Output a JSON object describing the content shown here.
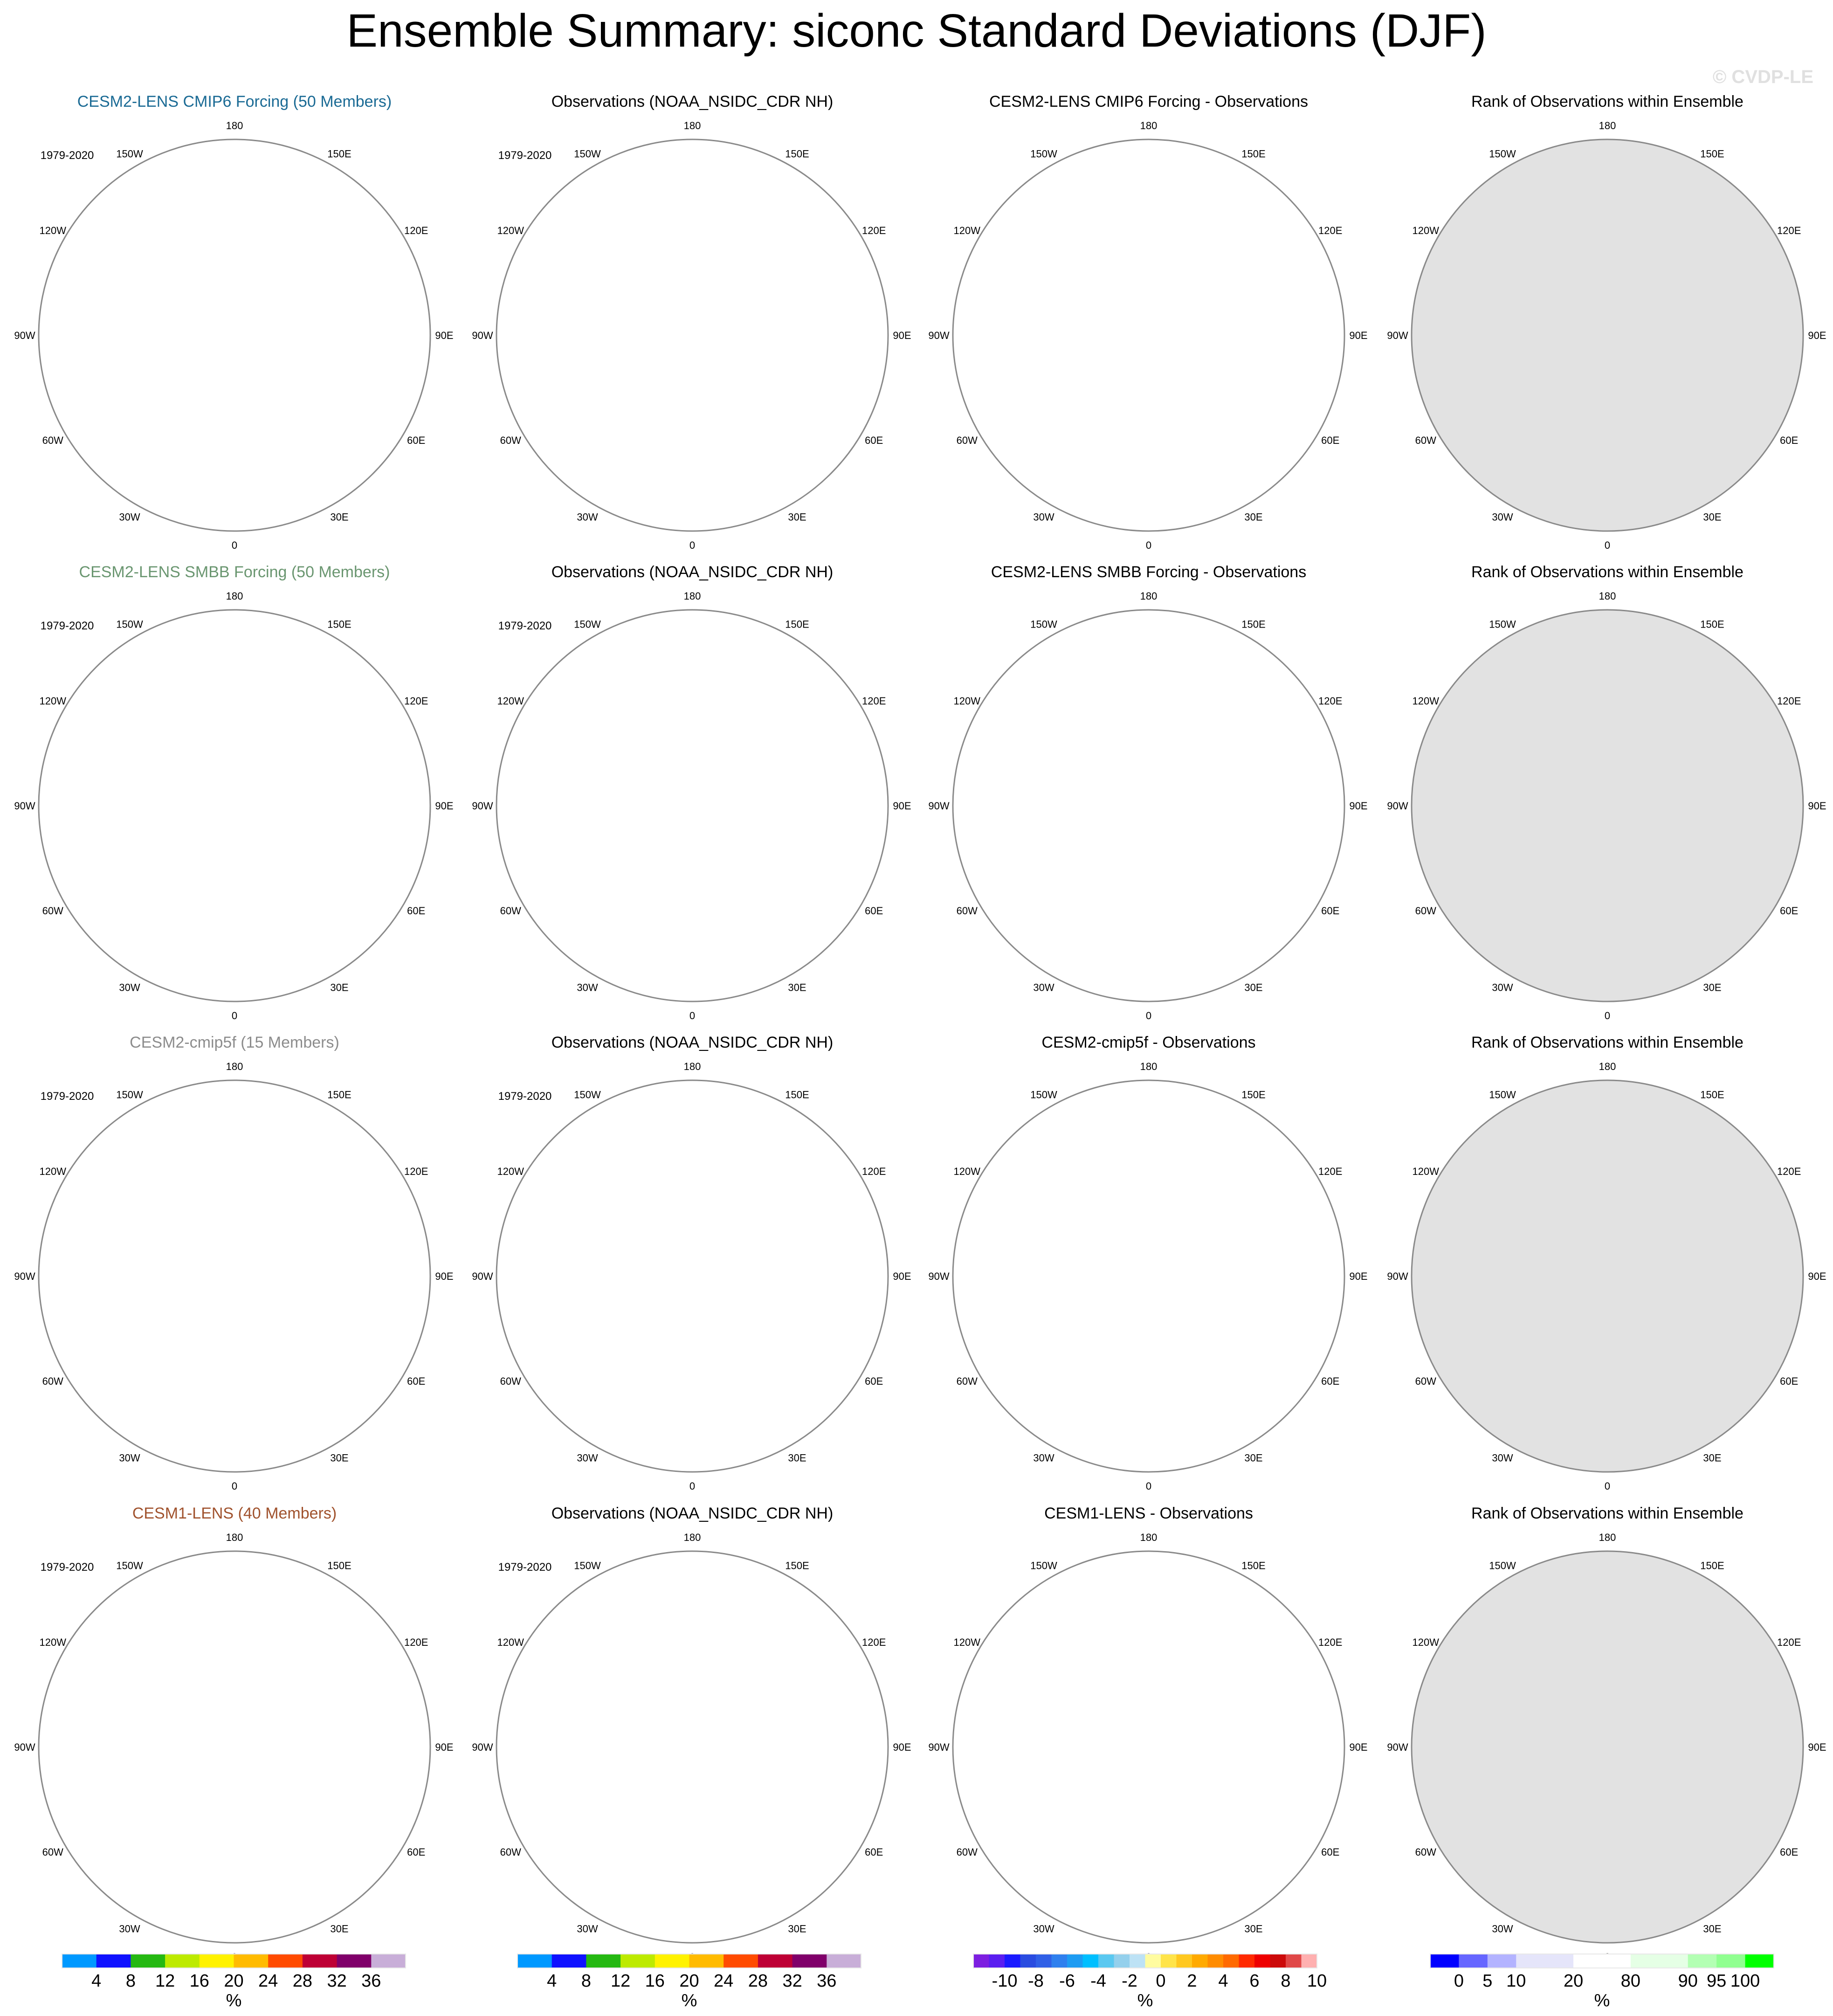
{
  "title": "Ensemble Summary: siconc Standard Deviations (DJF)",
  "watermark": "© CVDP-LE",
  "period": "1979-2020",
  "lon_labels": [
    {
      "lon": 180,
      "label": "180"
    },
    {
      "lon": 150,
      "label": "150E"
    },
    {
      "lon": 120,
      "label": "120E"
    },
    {
      "lon": 90,
      "label": "90E"
    },
    {
      "lon": 60,
      "label": "60E"
    },
    {
      "lon": 30,
      "label": "30E"
    },
    {
      "lon": 0,
      "label": "0"
    },
    {
      "lon": -30,
      "label": "30W"
    },
    {
      "lon": -60,
      "label": "60W"
    },
    {
      "lon": -90,
      "label": "90W"
    },
    {
      "lon": -120,
      "label": "120W"
    },
    {
      "lon": -150,
      "label": "150W"
    }
  ],
  "colors": {
    "land": "#c0c0c0",
    "rank_ocean": "#e2e2e2",
    "ocean": "#ffffff"
  },
  "chart_data": {
    "type": "map-grid",
    "projection": "north polar stereographic",
    "rows": [
      {
        "model_title": "CESM2-LENS CMIP6 Forcing (50 Members)",
        "model_color": "#1a6a94",
        "obs_title": "Observations (NOAA_NSIDC_CDR NH)",
        "diff_title": "CESM2-LENS CMIP6 Forcing - Observations",
        "rank_title": "Rank of Observations within Ensemble"
      },
      {
        "model_title": "CESM2-LENS SMBB Forcing (50 Members)",
        "model_color": "#6a9670",
        "obs_title": "Observations (NOAA_NSIDC_CDR NH)",
        "diff_title": "CESM2-LENS SMBB Forcing - Observations",
        "rank_title": "Rank of Observations within Ensemble"
      },
      {
        "model_title": "CESM2-cmip5f (15 Members)",
        "model_color": "#8c8c8c",
        "obs_title": "Observations (NOAA_NSIDC_CDR NH)",
        "diff_title": "CESM2-cmip5f - Observations",
        "rank_title": "Rank of Observations within Ensemble"
      },
      {
        "model_title": "CESM1-LENS (40 Members)",
        "model_color": "#a0522d",
        "obs_title": "Observations (NOAA_NSIDC_CDR NH)",
        "diff_title": "CESM1-LENS - Observations",
        "rank_title": "Rank of Observations within Ensemble"
      }
    ],
    "colorbars": [
      {
        "unit": "%",
        "labels": [
          "4",
          "8",
          "12",
          "16",
          "20",
          "24",
          "28",
          "32",
          "36"
        ],
        "colors": [
          "#0099ff",
          "#0f12ff",
          "#25b812",
          "#bdea00",
          "#fff200",
          "#ffbb00",
          "#ff4b00",
          "#be0035",
          "#80006a",
          "#c8aed8"
        ],
        "widths": [
          1,
          1,
          1,
          1,
          1,
          1,
          1,
          1,
          1,
          1
        ],
        "label_every": 1
      },
      {
        "unit": "%",
        "labels": [
          "4",
          "8",
          "12",
          "16",
          "20",
          "24",
          "28",
          "32",
          "36"
        ],
        "colors": [
          "#0099ff",
          "#0f12ff",
          "#25b812",
          "#bdea00",
          "#fff200",
          "#ffbb00",
          "#ff4b00",
          "#be0035",
          "#80006a",
          "#c8aed8"
        ],
        "widths": [
          1,
          1,
          1,
          1,
          1,
          1,
          1,
          1,
          1,
          1
        ],
        "label_every": 1
      },
      {
        "unit": "%",
        "labels": [
          "-10",
          "-8",
          "-6",
          "-4",
          "-2",
          "0",
          "2",
          "4",
          "6",
          "8",
          "10"
        ],
        "colors": [
          "#7d1fe0",
          "#5a1ef0",
          "#1a1aff",
          "#2a4ce0",
          "#3060e6",
          "#2f80ee",
          "#1e9cf2",
          "#00bfff",
          "#5ac8f0",
          "#94d0ec",
          "#bde2f5",
          "#fffca0",
          "#ffe44a",
          "#ffc820",
          "#ffaa00",
          "#ff8c00",
          "#ff6a00",
          "#ff2a00",
          "#ee0000",
          "#cc0a0a",
          "#e04848",
          "#ffb0b0"
        ],
        "widths": [
          1,
          1,
          1,
          1,
          1,
          1,
          1,
          1,
          1,
          1,
          1,
          1,
          1,
          1,
          1,
          1,
          1,
          1,
          1,
          1,
          1,
          1
        ],
        "label_every": 2
      },
      {
        "unit": "%",
        "labels": [
          "0",
          "5",
          "10",
          "20",
          "80",
          "90",
          "95",
          "100"
        ],
        "colors": [
          "#0000ff",
          "#6666ff",
          "#b3b3ff",
          "#e5e5fa",
          "#ffffff",
          "#e5ffe5",
          "#b3ffb3",
          "#90ff90",
          "#00ff00"
        ],
        "widths": [
          1,
          1,
          1,
          2,
          2,
          2,
          1,
          1,
          1
        ],
        "label_every": 1
      }
    ]
  }
}
